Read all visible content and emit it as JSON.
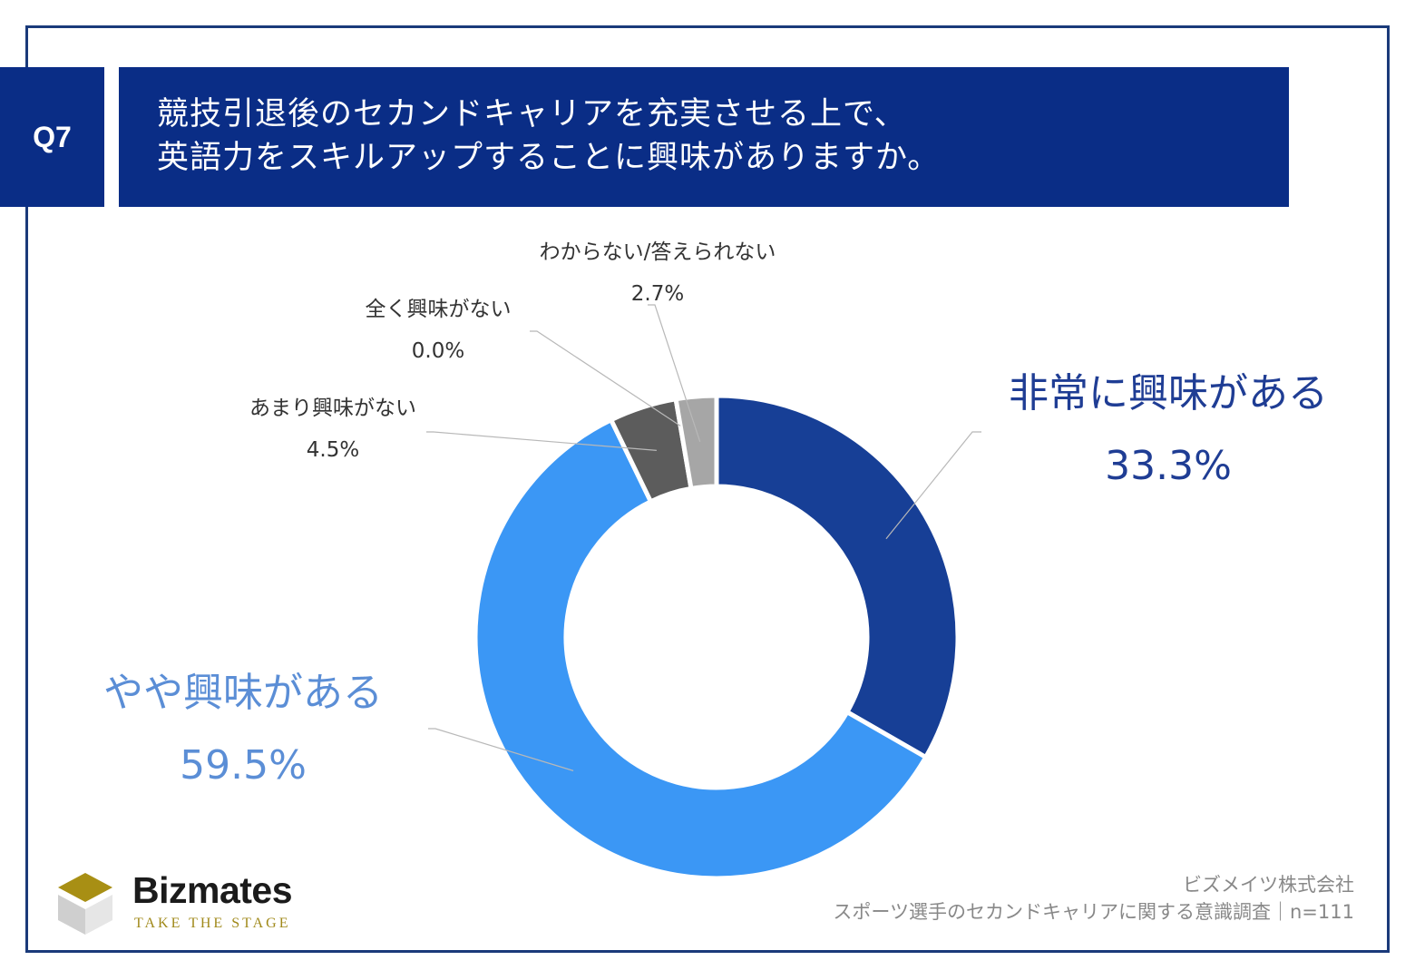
{
  "question": {
    "number": "Q7",
    "title_lines": [
      "競技引退後のセカンドキャリアを充実させる上で、",
      "英語力をスキルアップすることに興味がありますか。"
    ]
  },
  "chart_data": {
    "type": "pie",
    "donut": true,
    "start": "top",
    "direction": "clockwise",
    "slices": [
      {
        "label": "非常に興味がある",
        "value": 33.3,
        "value_label": "33.3%",
        "color": "#173f96"
      },
      {
        "label": "やや興味がある",
        "value": 59.5,
        "value_label": "59.5%",
        "color": "#3b97f5"
      },
      {
        "label": "あまり興味がない",
        "value": 4.5,
        "value_label": "4.5%",
        "color": "#5c5c5c"
      },
      {
        "label": "全く興味がない",
        "value": 0.0,
        "value_label": "0.0%",
        "color": "#3a3a3a"
      },
      {
        "label": "わからない/答えられない",
        "value": 2.7,
        "value_label": "2.7%",
        "color": "#a6a6a6"
      }
    ]
  },
  "logo": {
    "name": "Bizmates",
    "tagline": "TAKE THE STAGE"
  },
  "source": {
    "company": "ビズメイツ株式会社",
    "survey": "スポーツ選手のセカンドキャリアに関する意識調査｜n=111"
  }
}
